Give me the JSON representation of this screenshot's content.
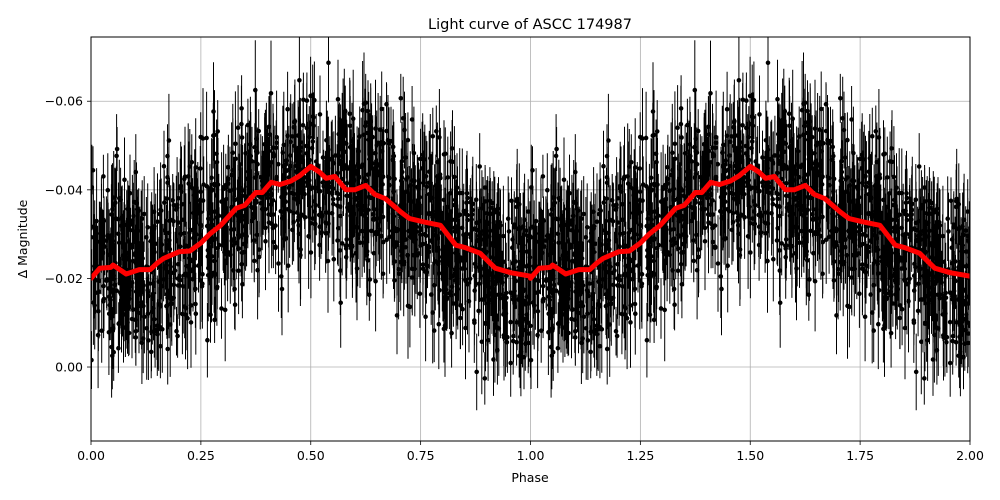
{
  "chart_data": {
    "type": "scatter",
    "title": "Light curve of ASCC 174987",
    "xlabel": "Phase",
    "ylabel": "Δ Magnitude",
    "xlim": [
      0.0,
      2.0
    ],
    "ylim": [
      0.0167,
      -0.0745
    ],
    "y_inverted": true,
    "grid": true,
    "x_ticks": [
      "0.00",
      "0.25",
      "0.50",
      "0.75",
      "1.00",
      "1.25",
      "1.50",
      "1.75",
      "2.00"
    ],
    "x_tick_values": [
      0.0,
      0.25,
      0.5,
      0.75,
      1.0,
      1.25,
      1.5,
      1.75,
      2.0
    ],
    "y_ticks": [
      "−0.06",
      "−0.04",
      "−0.02",
      "0.00"
    ],
    "y_tick_values": [
      -0.06,
      -0.04,
      -0.02,
      0.0
    ],
    "series": [
      {
        "name": "observations",
        "kind": "errorbar-scatter",
        "color": "#000000",
        "description": "Dense phase-folded photometric points with vertical error bars, scatter roughly ±0.03 mag around the binned curve, shown twice (phase 0-1 repeated at 1-2)",
        "typical_error": 0.008
      },
      {
        "name": "binned mean",
        "kind": "line",
        "color": "#ff0000",
        "phase": [
          0.0,
          0.02,
          0.045,
          0.05,
          0.08,
          0.11,
          0.135,
          0.15,
          0.165,
          0.2,
          0.225,
          0.25,
          0.27,
          0.295,
          0.33,
          0.35,
          0.375,
          0.39,
          0.41,
          0.43,
          0.455,
          0.475,
          0.5,
          0.52,
          0.535,
          0.555,
          0.58,
          0.6,
          0.625,
          0.645,
          0.67,
          0.705,
          0.725,
          0.76,
          0.795,
          0.83,
          0.85,
          0.885,
          0.92,
          0.955,
          1.0
        ],
        "values": [
          -0.02,
          -0.0223,
          -0.0225,
          -0.023,
          -0.021,
          -0.022,
          -0.022,
          -0.0234,
          -0.0245,
          -0.026,
          -0.0262,
          -0.028,
          -0.03,
          -0.032,
          -0.0358,
          -0.0365,
          -0.0394,
          -0.0394,
          -0.0417,
          -0.0412,
          -0.042,
          -0.0432,
          -0.0453,
          -0.044,
          -0.0426,
          -0.043,
          -0.04,
          -0.04,
          -0.041,
          -0.039,
          -0.038,
          -0.035,
          -0.0335,
          -0.0327,
          -0.032,
          -0.0275,
          -0.027,
          -0.0257,
          -0.0223,
          -0.0213,
          -0.0205
        ],
        "repeated_over_phase": [
          0.0,
          2.0
        ]
      }
    ]
  }
}
